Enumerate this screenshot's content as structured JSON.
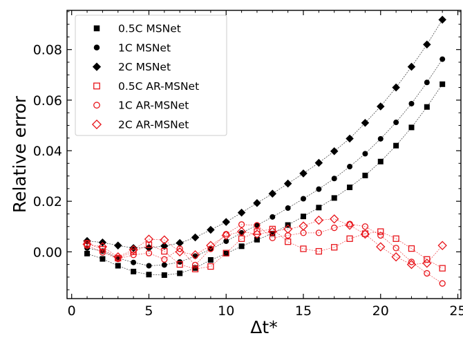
{
  "chart_data": {
    "type": "scatter",
    "xlabel": "Δt*",
    "ylabel": "Relative error",
    "xlim": [
      -0.3,
      25.2
    ],
    "ylim": [
      -0.0185,
      0.0955
    ],
    "xticks": [
      0,
      5,
      10,
      15,
      20,
      25
    ],
    "xtick_labels": [
      "0",
      "5",
      "10",
      "15",
      "20",
      "25"
    ],
    "yticks": [
      0.0,
      0.02,
      0.04,
      0.06,
      0.08
    ],
    "ytick_labels": [
      "0.00",
      "0.02",
      "0.04",
      "0.06",
      "0.08"
    ],
    "x_minor_step": 1,
    "y_minor_step": 0.005,
    "grid": false,
    "legend_position": "top-left",
    "x": [
      1,
      2,
      3,
      4,
      5,
      6,
      7,
      8,
      9,
      10,
      11,
      12,
      13,
      14,
      15,
      16,
      17,
      18,
      19,
      20,
      21,
      22,
      23,
      24
    ],
    "series": [
      {
        "name": "0.5C MSNet",
        "marker": "square",
        "filled": true,
        "color": "#000000",
        "values": [
          -0.0007,
          -0.0028,
          -0.0055,
          -0.0078,
          -0.009,
          -0.0092,
          -0.0085,
          -0.0064,
          -0.0032,
          -0.0007,
          0.0022,
          0.0048,
          0.0072,
          0.0106,
          0.014,
          0.0175,
          0.0213,
          0.0255,
          0.0302,
          0.0357,
          0.042,
          0.0492,
          0.0573,
          0.0663
        ]
      },
      {
        "name": "1C MSNet",
        "marker": "circle",
        "filled": true,
        "color": "#000000",
        "values": [
          0.0015,
          0.0003,
          -0.0025,
          -0.0042,
          -0.0055,
          -0.0052,
          -0.004,
          -0.0017,
          0.001,
          0.0042,
          0.0075,
          0.0105,
          0.0138,
          0.0173,
          0.021,
          0.0248,
          0.029,
          0.0337,
          0.0388,
          0.0447,
          0.0512,
          0.0586,
          0.067,
          0.0762
        ]
      },
      {
        "name": "2C MSNet",
        "marker": "diamond",
        "filled": true,
        "color": "#000000",
        "values": [
          0.0043,
          0.0037,
          0.0025,
          0.0015,
          0.0016,
          0.0023,
          0.0035,
          0.0057,
          0.0087,
          0.0118,
          0.0155,
          0.0193,
          0.023,
          0.027,
          0.031,
          0.0352,
          0.0398,
          0.0448,
          0.051,
          0.0575,
          0.065,
          0.0732,
          0.082,
          0.0918
        ]
      },
      {
        "name": "0.5C AR-MSNet",
        "marker": "square",
        "filled": false,
        "color": "#e8141a",
        "values": [
          0.0033,
          0.001,
          -0.0025,
          0.0,
          0.0028,
          0.0002,
          -0.005,
          -0.0068,
          -0.0058,
          -0.0005,
          0.0052,
          0.008,
          0.009,
          0.004,
          0.0012,
          0.0002,
          0.0018,
          0.0052,
          0.0072,
          0.008,
          0.0052,
          0.0013,
          -0.003,
          -0.0065
        ]
      },
      {
        "name": "1C AR-MSNet",
        "marker": "circle",
        "filled": false,
        "color": "#e8141a",
        "values": [
          0.0025,
          -0.0002,
          -0.0028,
          -0.0012,
          -0.0005,
          -0.003,
          0.0012,
          -0.0052,
          0.0012,
          0.007,
          0.0108,
          0.0105,
          0.0055,
          0.0065,
          0.0075,
          0.0075,
          0.0095,
          0.011,
          0.01,
          0.0065,
          0.0015,
          -0.004,
          -0.0085,
          -0.0125
        ]
      },
      {
        "name": "2C AR-MSNet",
        "marker": "diamond",
        "filled": false,
        "color": "#e8141a",
        "values": [
          0.003,
          0.002,
          -0.002,
          0.0008,
          0.005,
          0.0047,
          0.0,
          -0.0012,
          0.0025,
          0.0065,
          0.008,
          0.007,
          0.008,
          0.009,
          0.0102,
          0.0125,
          0.013,
          0.0105,
          0.007,
          0.002,
          -0.002,
          -0.005,
          -0.0045,
          0.0025
        ]
      }
    ]
  }
}
